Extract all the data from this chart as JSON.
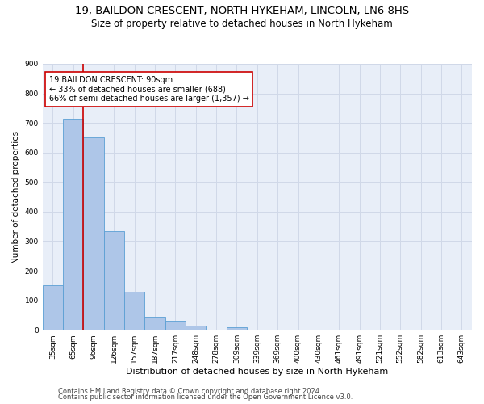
{
  "title1": "19, BAILDON CRESCENT, NORTH HYKEHAM, LINCOLN, LN6 8HS",
  "title2": "Size of property relative to detached houses in North Hykeham",
  "xlabel": "Distribution of detached houses by size in North Hykeham",
  "ylabel": "Number of detached properties",
  "categories": [
    "35sqm",
    "65sqm",
    "96sqm",
    "126sqm",
    "157sqm",
    "187sqm",
    "217sqm",
    "248sqm",
    "278sqm",
    "309sqm",
    "339sqm",
    "369sqm",
    "400sqm",
    "430sqm",
    "461sqm",
    "491sqm",
    "521sqm",
    "552sqm",
    "582sqm",
    "613sqm",
    "643sqm"
  ],
  "values": [
    150,
    715,
    650,
    335,
    130,
    45,
    32,
    13,
    0,
    10,
    0,
    0,
    0,
    0,
    0,
    0,
    0,
    0,
    0,
    0,
    0
  ],
  "bar_color": "#aec6e8",
  "bar_edge_color": "#5a9fd4",
  "annotation_title": "19 BAILDON CRESCENT: 90sqm",
  "annotation_line1": "← 33% of detached houses are smaller (688)",
  "annotation_line2": "66% of semi-detached houses are larger (1,357) →",
  "annotation_box_color": "#ffffff",
  "annotation_box_edge_color": "#cc0000",
  "vline_color": "#cc0000",
  "vline_x_index": 2,
  "ylim": [
    0,
    900
  ],
  "yticks": [
    0,
    100,
    200,
    300,
    400,
    500,
    600,
    700,
    800,
    900
  ],
  "grid_color": "#d0d8e8",
  "bg_color": "#e8eef8",
  "footer1": "Contains HM Land Registry data © Crown copyright and database right 2024.",
  "footer2": "Contains public sector information licensed under the Open Government Licence v3.0.",
  "title1_fontsize": 9.5,
  "title2_fontsize": 8.5,
  "xlabel_fontsize": 8,
  "ylabel_fontsize": 7.5,
  "tick_fontsize": 6.5,
  "annotation_fontsize": 7,
  "footer_fontsize": 6
}
